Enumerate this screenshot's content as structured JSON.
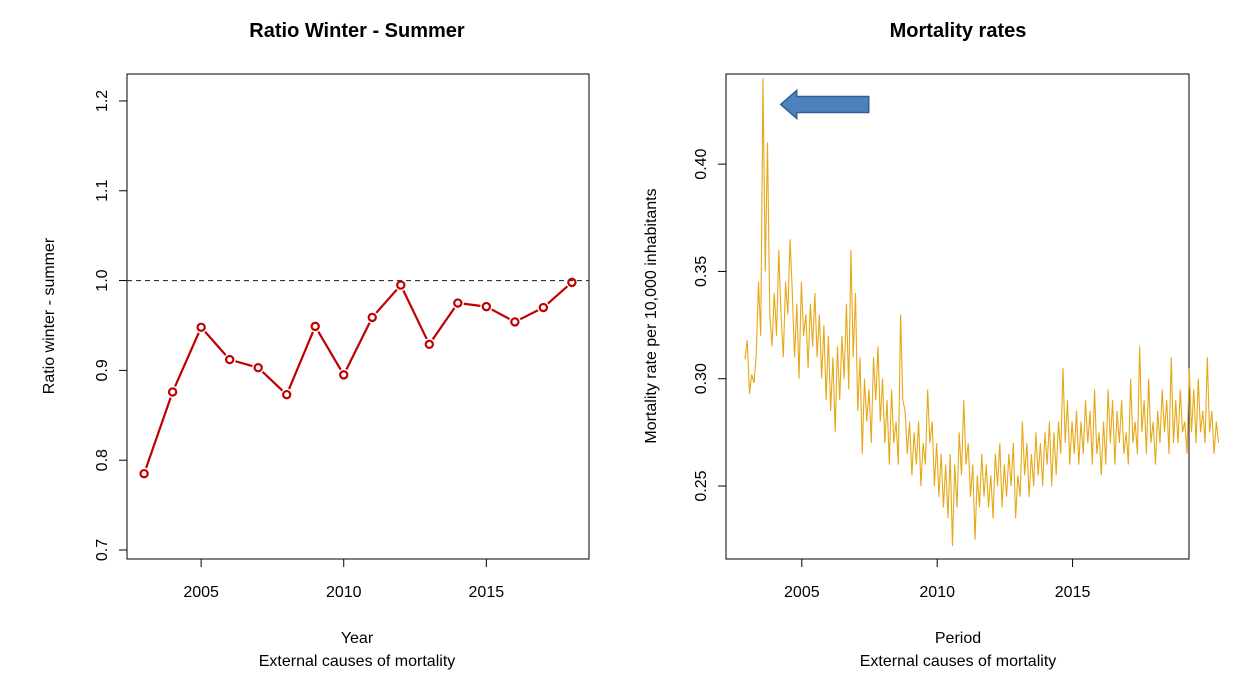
{
  "chart_data": [
    {
      "type": "line",
      "title": "Ratio Winter - Summer",
      "xlabel": "Year",
      "subtitle": "External causes of mortality",
      "ylabel": "Ratio winter - summer",
      "xlim": [
        2002.4,
        2018.6
      ],
      "ylim": [
        0.69,
        1.23
      ],
      "x_ticks": [
        "2005",
        "2010",
        "2015"
      ],
      "x_tick_values": [
        2005,
        2010,
        2015
      ],
      "y_ticks": [
        "0.7",
        "0.8",
        "0.9",
        "1.0",
        "1.1",
        "1.2"
      ],
      "y_tick_values": [
        0.7,
        0.8,
        0.9,
        1.0,
        1.1,
        1.2
      ],
      "reference_line": 1.0,
      "color": "#c00000",
      "x": [
        2003,
        2004,
        2005,
        2006,
        2007,
        2008,
        2009,
        2010,
        2011,
        2012,
        2013,
        2014,
        2015,
        2016,
        2017,
        2018
      ],
      "values": [
        0.785,
        0.876,
        0.948,
        0.912,
        0.903,
        0.873,
        0.949,
        0.895,
        0.959,
        0.995,
        0.929,
        0.975,
        0.971,
        0.954,
        0.97,
        0.998
      ],
      "grid": false
    },
    {
      "type": "line",
      "title": "Mortality rates",
      "xlabel": "Period",
      "subtitle": "External causes of mortality",
      "ylabel": "Mortality rate per 10,000 inhabitants",
      "xlim": [
        2002.2,
        2019.3
      ],
      "ylim": [
        0.216,
        0.442
      ],
      "x_ticks": [
        "2005",
        "2010",
        "2015"
      ],
      "x_tick_values": [
        2005,
        2010,
        2015
      ],
      "y_ticks": [
        "0.25",
        "0.30",
        "0.35",
        "0.40"
      ],
      "y_tick_values": [
        0.25,
        0.3,
        0.35,
        0.4
      ],
      "color": "#e6a817",
      "annotation": {
        "type": "arrow",
        "color": "#4f81bd",
        "points_at": [
          2004.0,
          0.432
        ]
      },
      "x_start": 2002.9,
      "x_step": 0.0833,
      "values": [
        0.309,
        0.318,
        0.293,
        0.302,
        0.298,
        0.311,
        0.345,
        0.32,
        0.44,
        0.35,
        0.41,
        0.33,
        0.315,
        0.34,
        0.32,
        0.36,
        0.33,
        0.31,
        0.345,
        0.33,
        0.365,
        0.34,
        0.31,
        0.335,
        0.3,
        0.345,
        0.32,
        0.33,
        0.305,
        0.335,
        0.315,
        0.34,
        0.31,
        0.33,
        0.3,
        0.325,
        0.29,
        0.32,
        0.285,
        0.31,
        0.275,
        0.315,
        0.29,
        0.32,
        0.3,
        0.335,
        0.295,
        0.36,
        0.31,
        0.34,
        0.285,
        0.31,
        0.265,
        0.3,
        0.28,
        0.295,
        0.27,
        0.31,
        0.29,
        0.315,
        0.28,
        0.3,
        0.27,
        0.29,
        0.26,
        0.295,
        0.27,
        0.28,
        0.26,
        0.33,
        0.29,
        0.285,
        0.265,
        0.28,
        0.255,
        0.275,
        0.26,
        0.28,
        0.25,
        0.27,
        0.26,
        0.295,
        0.27,
        0.28,
        0.25,
        0.27,
        0.245,
        0.265,
        0.24,
        0.26,
        0.235,
        0.265,
        0.222,
        0.26,
        0.24,
        0.275,
        0.255,
        0.29,
        0.26,
        0.27,
        0.245,
        0.26,
        0.225,
        0.255,
        0.24,
        0.265,
        0.245,
        0.26,
        0.24,
        0.255,
        0.235,
        0.265,
        0.25,
        0.27,
        0.24,
        0.26,
        0.245,
        0.265,
        0.25,
        0.27,
        0.235,
        0.255,
        0.245,
        0.28,
        0.255,
        0.27,
        0.245,
        0.265,
        0.25,
        0.275,
        0.255,
        0.27,
        0.25,
        0.275,
        0.26,
        0.28,
        0.25,
        0.275,
        0.255,
        0.28,
        0.265,
        0.305,
        0.27,
        0.29,
        0.26,
        0.28,
        0.265,
        0.285,
        0.26,
        0.28,
        0.265,
        0.29,
        0.27,
        0.285,
        0.26,
        0.295,
        0.265,
        0.275,
        0.255,
        0.28,
        0.26,
        0.295,
        0.27,
        0.29,
        0.26,
        0.285,
        0.27,
        0.29,
        0.265,
        0.275,
        0.26,
        0.3,
        0.27,
        0.28,
        0.265,
        0.315,
        0.275,
        0.29,
        0.265,
        0.3,
        0.27,
        0.28,
        0.26,
        0.285,
        0.27,
        0.295,
        0.275,
        0.29,
        0.265,
        0.31,
        0.27,
        0.29,
        0.27,
        0.295,
        0.275,
        0.28,
        0.265,
        0.305,
        0.275,
        0.295,
        0.27,
        0.3,
        0.275,
        0.285,
        0.27,
        0.31,
        0.275,
        0.285,
        0.265,
        0.28,
        0.27
      ]
    }
  ]
}
